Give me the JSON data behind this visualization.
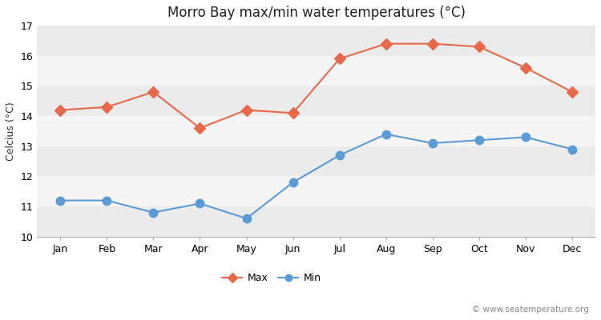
{
  "title": "Morro Bay max/min water temperatures (°C)",
  "ylabel": "Celcius (°C)",
  "months": [
    "Jan",
    "Feb",
    "Mar",
    "Apr",
    "May",
    "Jun",
    "Jul",
    "Aug",
    "Sep",
    "Oct",
    "Nov",
    "Dec"
  ],
  "max_temps": [
    14.2,
    14.3,
    14.8,
    13.6,
    14.2,
    14.1,
    15.9,
    16.4,
    16.4,
    16.3,
    15.6,
    14.8
  ],
  "min_temps": [
    11.2,
    11.2,
    10.8,
    11.1,
    10.6,
    11.8,
    12.7,
    13.4,
    13.1,
    13.2,
    13.3,
    12.9
  ],
  "ylim": [
    10,
    17
  ],
  "yticks": [
    10,
    11,
    12,
    13,
    14,
    15,
    16,
    17
  ],
  "max_color": "#e8694a",
  "min_color": "#5b9bd5",
  "fig_bg_color": "#ffffff",
  "band_light": "#ebebeb",
  "band_white": "#f5f5f5",
  "watermark": "© www.seatemperature.org",
  "legend_max": "Max",
  "legend_min": "Min",
  "title_fontsize": 12,
  "label_fontsize": 9,
  "tick_fontsize": 9,
  "watermark_fontsize": 7.5
}
